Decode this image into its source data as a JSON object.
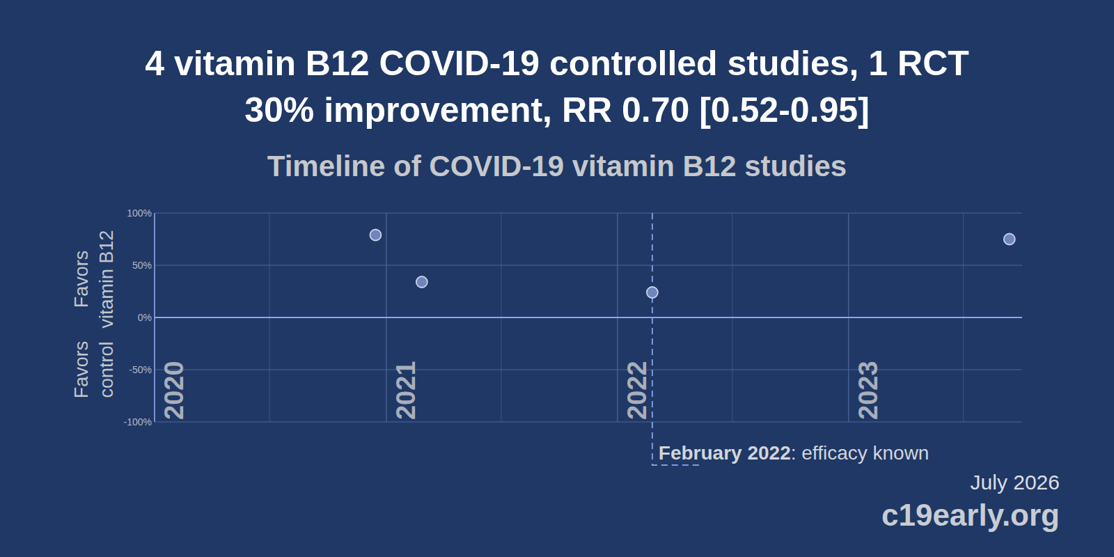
{
  "chart_data": {
    "type": "scatter",
    "title": "4 vitamin B12 COVID-19 controlled studies, 1 RCT",
    "subtitle": "30% improvement, RR 0.70 [0.52-0.95]",
    "plot_title": "Timeline of COVID-19 vitamin B12 studies",
    "ylabel_top": "Favors vitamin B12",
    "ylabel_bottom": "Favors control",
    "x": [
      "2020-12-15",
      "2021-02-26",
      "2022-02-25",
      "2023-09-12"
    ],
    "values": [
      79,
      34,
      24,
      75
    ],
    "color": "#7185bd",
    "marker": "circle",
    "xlim": [
      "2020-01-01",
      "2023-10-02"
    ],
    "xticks": [
      {
        "value": "2020-01-01",
        "label": "2020"
      },
      {
        "value": "2021-01-01",
        "label": "2021"
      },
      {
        "value": "2022-01-01",
        "label": "2022"
      },
      {
        "value": "2023-01-01",
        "label": "2023"
      }
    ],
    "ylim": [
      -100,
      100
    ],
    "yticks": [
      {
        "value": -100,
        "label": "-100%"
      },
      {
        "value": -50,
        "label": "-50%"
      },
      {
        "value": 0,
        "label": "0%"
      },
      {
        "value": 50,
        "label": "50%"
      },
      {
        "value": 100,
        "label": "100%"
      }
    ],
    "grid": true,
    "annotation": {
      "x": "2022-02-25",
      "text": "February 2022: efficacy known"
    },
    "date": "July 2026",
    "source": "c19early.org"
  }
}
